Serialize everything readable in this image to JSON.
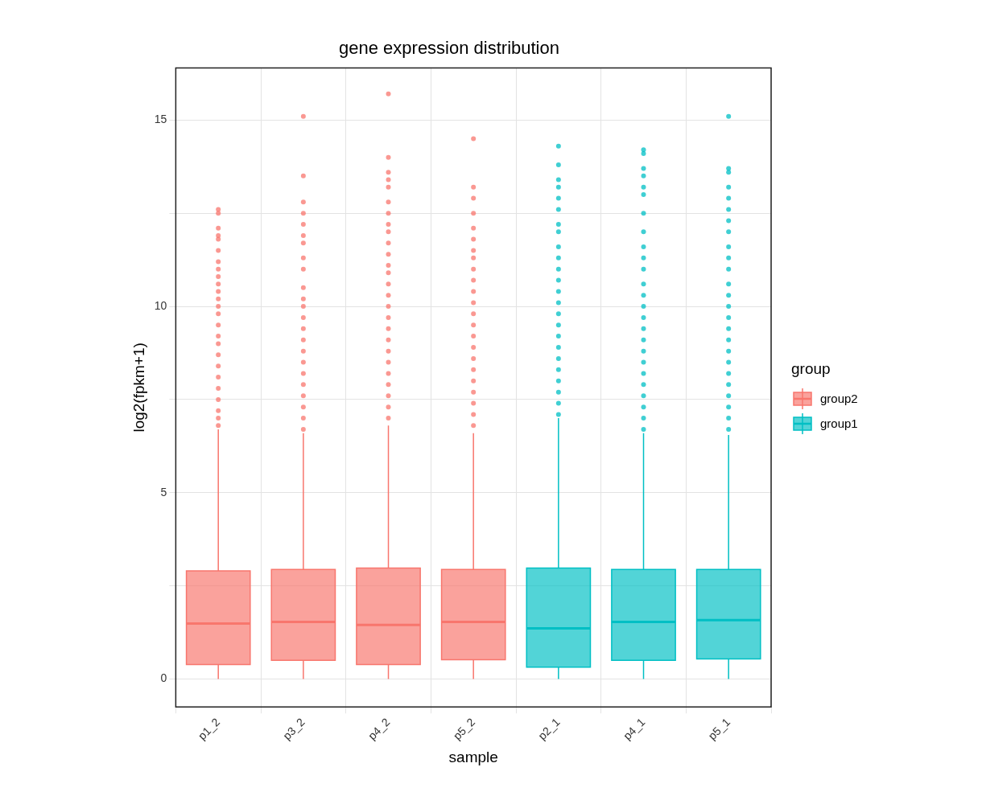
{
  "chart_data": {
    "type": "box",
    "title": "gene expression distribution",
    "xlabel": "sample",
    "ylabel": "log2(fpkm+1)",
    "legend_title": "group",
    "legend": "right",
    "grid": true,
    "categories": [
      "p1_2",
      "p3_2",
      "p4_2",
      "p5_2",
      "p2_1",
      "p4_1",
      "p5_1"
    ],
    "ylim": [
      -0.75,
      16.4
    ],
    "yticks": [
      0,
      {
        "value": 2.5,
        "label": null
      },
      5,
      {
        "value": 7.5,
        "label": null
      },
      10,
      {
        "value": 12.5,
        "label": null
      },
      15
    ],
    "series": [
      {
        "name": "group2",
        "color": "#f8766d",
        "boxes": [
          {
            "low": 0,
            "q1": 0.39,
            "median": 1.49,
            "q3": 2.9,
            "high": 6.7,
            "outliers": [
              12.6,
              12.5,
              12.1,
              11.9,
              11.8,
              11.5,
              11.2,
              11.0,
              10.8,
              10.6,
              10.4,
              10.2,
              10.0,
              9.8,
              9.5,
              9.2,
              9.0,
              8.7,
              8.4,
              8.1,
              7.8,
              7.5,
              7.2,
              7.0,
              6.8
            ]
          },
          {
            "low": 0,
            "q1": 0.5,
            "median": 1.53,
            "q3": 2.94,
            "high": 6.6,
            "outliers": [
              15.1,
              13.5,
              12.8,
              12.5,
              12.2,
              11.9,
              11.7,
              11.3,
              11.0,
              10.5,
              10.2,
              10.0,
              9.7,
              9.4,
              9.1,
              8.8,
              8.5,
              8.2,
              7.9,
              7.6,
              7.3,
              7.0,
              6.7
            ]
          },
          {
            "low": 0,
            "q1": 0.39,
            "median": 1.45,
            "q3": 2.98,
            "high": 6.8,
            "outliers": [
              15.7,
              14.0,
              13.6,
              13.4,
              13.2,
              12.8,
              12.5,
              12.2,
              12.0,
              11.7,
              11.4,
              11.1,
              10.9,
              10.6,
              10.3,
              10.0,
              9.7,
              9.4,
              9.1,
              8.8,
              8.5,
              8.2,
              7.9,
              7.6,
              7.3,
              7.0
            ]
          },
          {
            "low": 0,
            "q1": 0.52,
            "median": 1.53,
            "q3": 2.94,
            "high": 6.6,
            "outliers": [
              14.5,
              13.2,
              12.9,
              12.5,
              12.1,
              11.8,
              11.5,
              11.3,
              11.0,
              10.7,
              10.4,
              10.1,
              9.8,
              9.5,
              9.2,
              8.9,
              8.6,
              8.3,
              8.0,
              7.7,
              7.4,
              7.1,
              6.8
            ]
          },
          null,
          null,
          null
        ]
      },
      {
        "name": "group1",
        "color": "#00bfc4",
        "boxes": [
          null,
          null,
          null,
          null,
          {
            "low": 0,
            "q1": 0.32,
            "median": 1.36,
            "q3": 2.98,
            "high": 7.0,
            "outliers": [
              14.3,
              13.8,
              13.4,
              13.2,
              12.9,
              12.6,
              12.2,
              12.0,
              11.6,
              11.3,
              11.0,
              10.7,
              10.4,
              10.1,
              9.8,
              9.5,
              9.2,
              8.9,
              8.6,
              8.3,
              8.0,
              7.7,
              7.4,
              7.1
            ]
          },
          {
            "low": 0,
            "q1": 0.5,
            "median": 1.53,
            "q3": 2.94,
            "high": 6.6,
            "outliers": [
              14.2,
              14.1,
              13.7,
              13.5,
              13.2,
              13.0,
              12.5,
              12.0,
              11.6,
              11.3,
              11.0,
              10.6,
              10.3,
              10.0,
              9.7,
              9.4,
              9.1,
              8.8,
              8.5,
              8.2,
              7.9,
              7.6,
              7.3,
              7.0,
              6.7
            ]
          },
          {
            "low": 0,
            "q1": 0.54,
            "median": 1.58,
            "q3": 2.94,
            "high": 6.55,
            "outliers": [
              15.1,
              13.7,
              13.6,
              13.2,
              12.9,
              12.6,
              12.3,
              12.0,
              11.6,
              11.3,
              11.0,
              10.6,
              10.3,
              10.0,
              9.7,
              9.4,
              9.1,
              8.8,
              8.5,
              8.2,
              7.9,
              7.6,
              7.3,
              7.0,
              6.7
            ]
          }
        ]
      }
    ]
  }
}
